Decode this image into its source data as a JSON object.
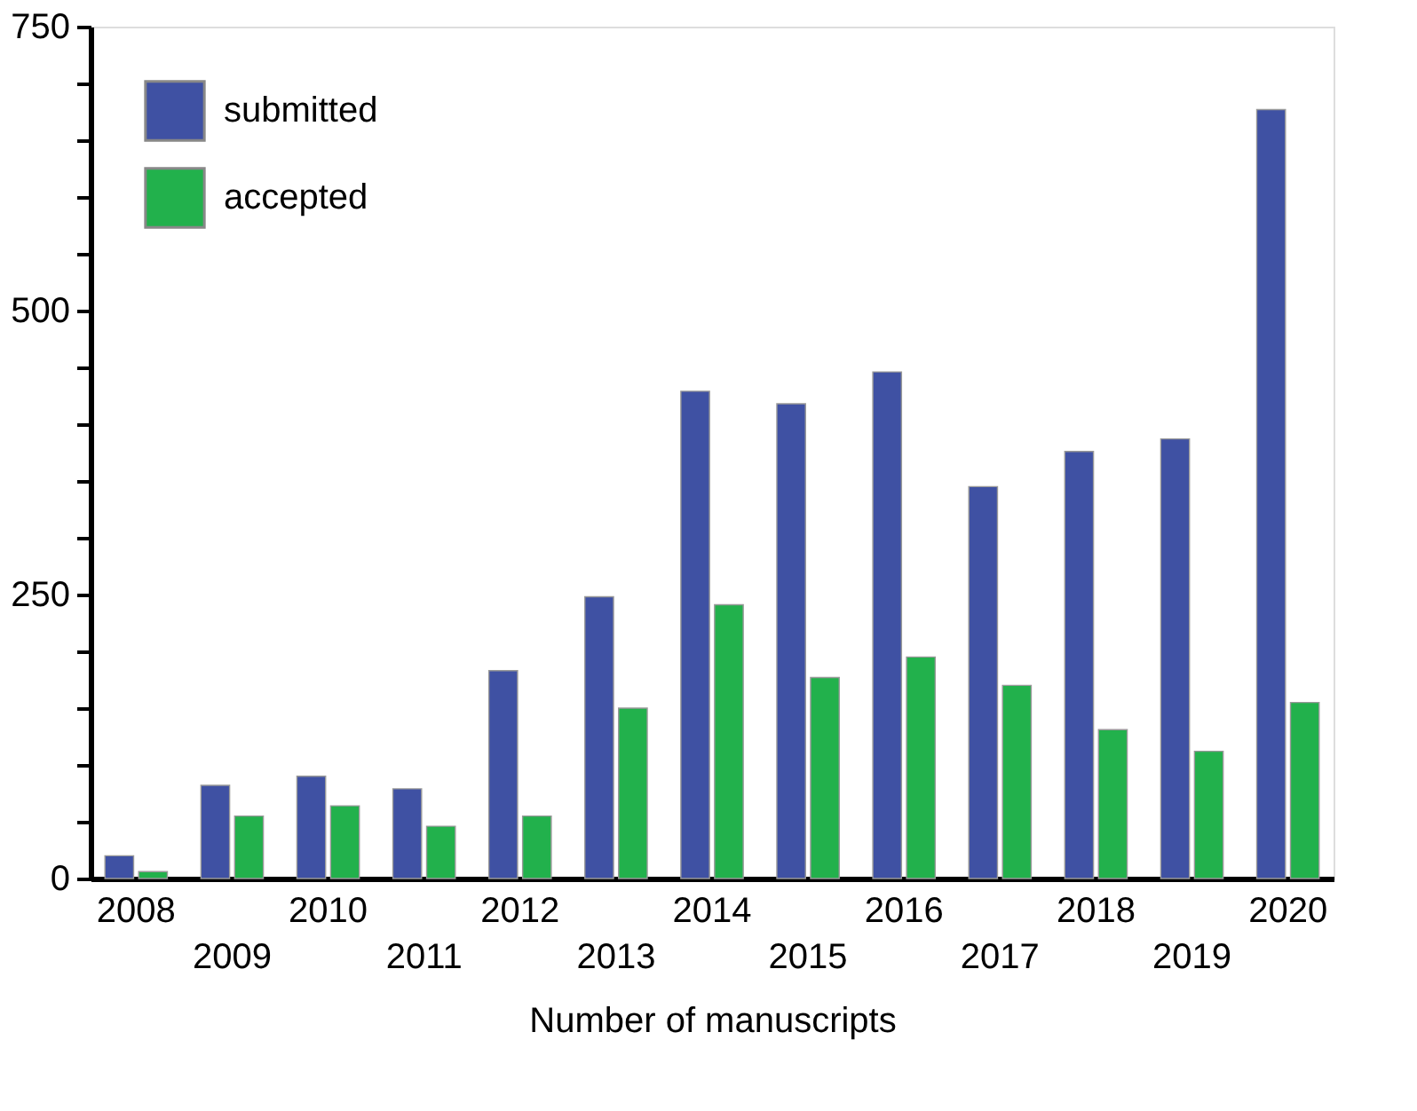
{
  "chart_data": {
    "type": "bar",
    "xlabel": "Number of manuscripts",
    "categories": [
      "2008",
      "2009",
      "2010",
      "2011",
      "2012",
      "2013",
      "2014",
      "2015",
      "2016",
      "2017",
      "2018",
      "2019",
      "2020"
    ],
    "series": [
      {
        "name": "submitted",
        "color": "#3f51a3",
        "values": [
          20,
          82,
          90,
          79,
          183,
          248,
          429,
          418,
          446,
          345,
          376,
          387,
          677
        ]
      },
      {
        "name": "accepted",
        "color": "#22b14c",
        "values": [
          6,
          55,
          64,
          46,
          55,
          150,
          241,
          177,
          195,
          170,
          131,
          112,
          155
        ]
      }
    ],
    "ylim": [
      0,
      750
    ],
    "yticks": [
      0,
      {
        "value": 50,
        "label": null
      },
      {
        "value": 100,
        "label": null
      },
      {
        "value": 150,
        "label": null
      },
      {
        "value": 200,
        "label": null
      },
      250,
      {
        "value": 300,
        "label": null
      },
      {
        "value": 350,
        "label": null
      },
      {
        "value": 400,
        "label": null
      },
      {
        "value": 450,
        "label": null
      },
      500,
      {
        "value": 550,
        "label": null
      },
      {
        "value": 600,
        "label": null
      },
      {
        "value": 650,
        "label": null
      },
      {
        "value": 700,
        "label": null
      },
      750
    ],
    "grid": false,
    "legend": "top left"
  }
}
